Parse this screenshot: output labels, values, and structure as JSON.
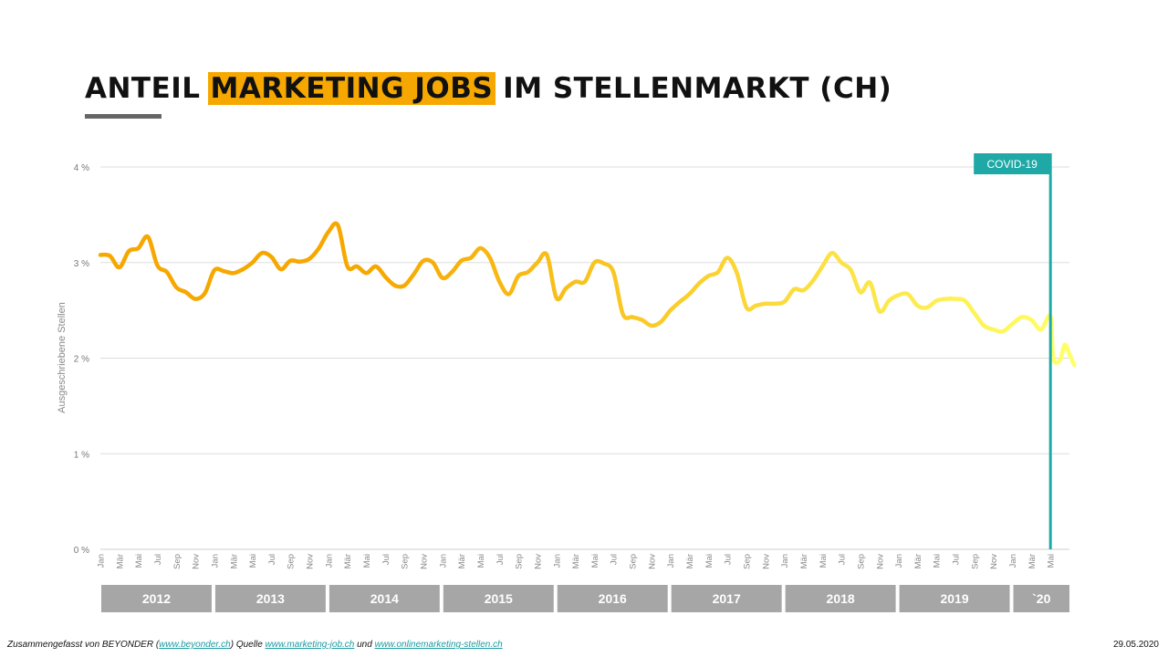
{
  "title": {
    "prefix": "ANTEIL",
    "highlight": "MARKETING JOBS",
    "suffix": "IM STELLENMARKT (CH)"
  },
  "colors": {
    "highlight": "#f6a800",
    "line_start": "#f6a800",
    "line_end": "#ffff66",
    "covid_marker": "#1fa9a6",
    "year_box": "#a6a6a6"
  },
  "chart_data": {
    "type": "line",
    "ylabel": "Ausgeschriebene  Stellen",
    "yticks": [
      "0 %",
      "1 %",
      "2 %",
      "3 %",
      "4 %"
    ],
    "ylim": [
      0,
      4
    ],
    "grid": true,
    "months": [
      "Jan",
      "Mär",
      "Mai",
      "Jul",
      "Sep",
      "Nov",
      "Jan",
      "Mär",
      "Mai",
      "Jul",
      "Sep",
      "Nov",
      "Jan",
      "Mär",
      "Mai",
      "Jul",
      "Sep",
      "Nov",
      "Jan",
      "Mär",
      "Mai",
      "Jul",
      "Sep",
      "Nov",
      "Jan",
      "Mär",
      "Mai",
      "Jul",
      "Sep",
      "Nov",
      "Jan",
      "Mär",
      "Mai",
      "Jul",
      "Sep",
      "Nov",
      "Jan",
      "Mär",
      "Mai",
      "Jul",
      "Sep",
      "Nov",
      "Jan",
      "Mär",
      "Mai",
      "Jul",
      "Sep",
      "Nov",
      "Jan",
      "Mär",
      "Mai"
    ],
    "years": [
      "2012",
      "2013",
      "2014",
      "2015",
      "2016",
      "2017",
      "2018",
      "2019",
      "`20"
    ],
    "annotation": {
      "label": "COVID-19",
      "x": 100
    },
    "series": [
      {
        "x": [
          0,
          1,
          2,
          3,
          4,
          5,
          6,
          7,
          8,
          9,
          10,
          11,
          12,
          13,
          14,
          15,
          16,
          17,
          18,
          19,
          20,
          21,
          22,
          23,
          24,
          25,
          26,
          27,
          28,
          29,
          30,
          31,
          32,
          33,
          34,
          35,
          36,
          37,
          38,
          39,
          40,
          41,
          42,
          43,
          44,
          45,
          46,
          47,
          48,
          49,
          50,
          51,
          52,
          53,
          54,
          55,
          56,
          57,
          58,
          59,
          60,
          61,
          62,
          63,
          64,
          65,
          66,
          67,
          68,
          69,
          70,
          71,
          72,
          73,
          74,
          75,
          76,
          77,
          78,
          79,
          80,
          81,
          82,
          83,
          84,
          85,
          86,
          87,
          88,
          89,
          90,
          91,
          92,
          93,
          94,
          95,
          96,
          97,
          98,
          99,
          100,
          100.3,
          101,
          101.5,
          102,
          102.5
        ],
        "values": [
          3.08,
          3.07,
          2.95,
          3.12,
          3.15,
          3.27,
          2.97,
          2.9,
          2.74,
          2.69,
          2.62,
          2.68,
          2.92,
          2.91,
          2.89,
          2.93,
          3.0,
          3.1,
          3.06,
          2.93,
          3.02,
          3.01,
          3.04,
          3.15,
          3.32,
          3.39,
          2.96,
          2.96,
          2.89,
          2.96,
          2.85,
          2.76,
          2.76,
          2.88,
          3.02,
          3.0,
          2.84,
          2.9,
          3.02,
          3.05,
          3.15,
          3.05,
          2.8,
          2.67,
          2.86,
          2.9,
          3.0,
          3.08,
          2.63,
          2.73,
          2.8,
          2.8,
          3.0,
          2.99,
          2.9,
          2.46,
          2.43,
          2.4,
          2.34,
          2.38,
          2.5,
          2.59,
          2.67,
          2.78,
          2.86,
          2.9,
          3.05,
          2.89,
          2.53,
          2.55,
          2.57,
          2.57,
          2.59,
          2.72,
          2.71,
          2.81,
          2.96,
          3.1,
          3.0,
          2.92,
          2.69,
          2.79,
          2.49,
          2.6,
          2.66,
          2.67,
          2.55,
          2.53,
          2.6,
          2.62,
          2.62,
          2.6,
          2.47,
          2.34,
          2.3,
          2.28,
          2.36,
          2.43,
          2.4,
          2.3,
          2.44,
          2.0,
          1.98,
          2.14,
          2.04,
          1.93
        ]
      }
    ]
  },
  "footer": {
    "prefix": "Zusammengefasst von BEYONDER (",
    "link1": "www.beyonder.ch",
    "mid1": ")  Quelle ",
    "link2": "www.marketing-job.ch",
    "mid2": " und ",
    "link3": "www.onlinemarketing-stellen.ch",
    "date": "29.05.2020"
  }
}
